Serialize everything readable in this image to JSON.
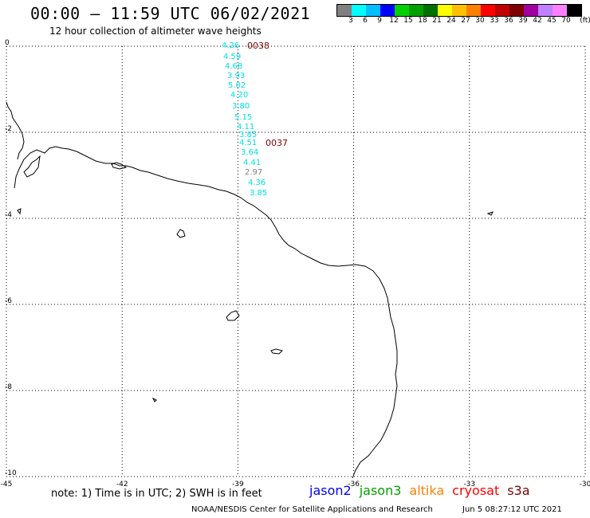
{
  "header": {
    "title": "00:00 – 11:59 UTC 06/02/2021",
    "subtitle": "12 hour collection of altimeter wave heights"
  },
  "legend": {
    "colors": [
      "#808080",
      "#00ffff",
      "#00bfff",
      "#0000ff",
      "#00d000",
      "#00a000",
      "#007000",
      "#ffff00",
      "#ffc000",
      "#ff8000",
      "#ff0000",
      "#c00000",
      "#800000",
      "#a000a0",
      "#c080ff",
      "#ff80ff",
      "#000000"
    ],
    "labels": [
      "3",
      "6",
      "9",
      "12",
      "15",
      "18",
      "21",
      "24",
      "27",
      "30",
      "33",
      "36",
      "39",
      "42",
      "45",
      "70",
      "(ft)"
    ]
  },
  "axes": {
    "x_ticks": [
      "-45",
      "-42",
      "-39",
      "-36",
      "-33",
      "-30"
    ],
    "y_ticks": [
      "0",
      "-2",
      "-4",
      "-6",
      "-8",
      "-10"
    ],
    "lon_range": [
      -45,
      -30
    ],
    "lat_range": [
      -10,
      0
    ],
    "grid": "dotted"
  },
  "wave_heights": [
    {
      "value": "4.26",
      "color": "#00e0e0"
    },
    {
      "value": "4.59",
      "color": "#00e0e0"
    },
    {
      "value": "4.68",
      "color": "#00e0e0"
    },
    {
      "value": "3.93",
      "color": "#00e0e0"
    },
    {
      "value": "5.02",
      "color": "#00e0e0"
    },
    {
      "value": "4.20",
      "color": "#00e0e0"
    },
    {
      "value": "3.80",
      "color": "#00e0e0"
    },
    {
      "value": "5.15",
      "color": "#00e0e0"
    },
    {
      "value": "4.11",
      "color": "#00e0e0"
    },
    {
      "value": "3.85",
      "color": "#00e0e0"
    },
    {
      "value": "4.51",
      "color": "#00e0e0"
    },
    {
      "value": "3.64",
      "color": "#00e0e0"
    },
    {
      "value": "4.41",
      "color": "#00e0e0"
    },
    {
      "value": "2.97",
      "color": "#808080"
    },
    {
      "value": "4.36",
      "color": "#00e0e0"
    },
    {
      "value": "3.85",
      "color": "#00e0e0"
    }
  ],
  "time_labels": [
    {
      "text": "0038",
      "color": "#800000"
    },
    {
      "text": "0037",
      "color": "#800000"
    }
  ],
  "note": "note: 1) Time is in UTC; 2) SWH is in feet",
  "satellites": [
    {
      "name": "jason2",
      "color": "#0000ff"
    },
    {
      "name": "jason3",
      "color": "#00a000"
    },
    {
      "name": "altika",
      "color": "#ff8000"
    },
    {
      "name": "cryosat",
      "color": "#ff0000"
    },
    {
      "name": "s3a",
      "color": "#800000"
    }
  ],
  "footer": {
    "credit": "NOAA/NESDIS Center for Satellite Applications and Research",
    "timestamp": "Jun  5 08:27:12 UTC 2021"
  }
}
